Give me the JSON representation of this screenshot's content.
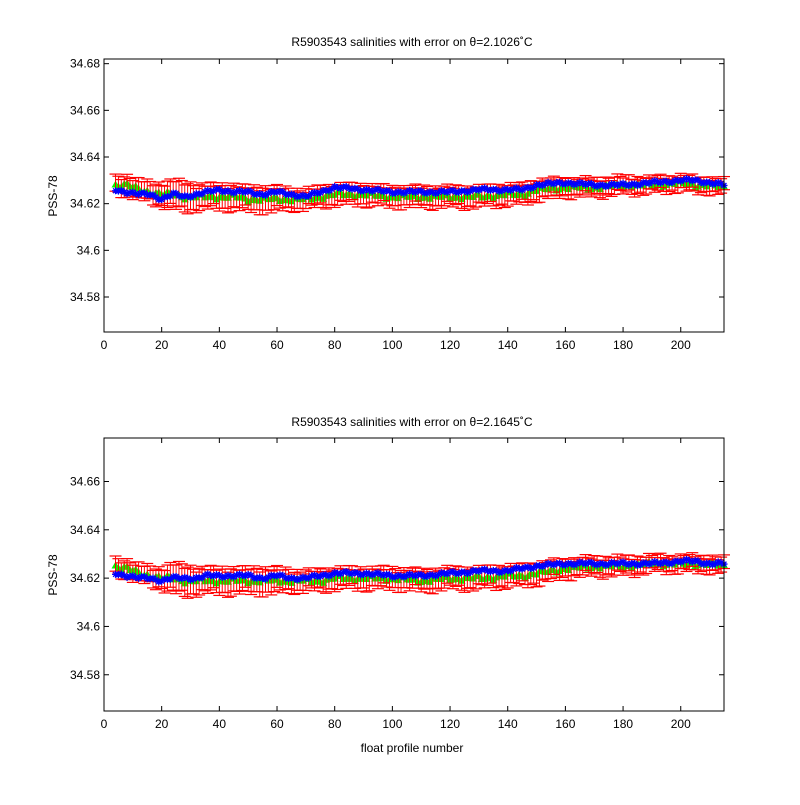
{
  "colors": {
    "background": "#ffffff",
    "axes": "#000000",
    "error_bars": "#ff0000",
    "mapped_salinity": "#00ff00",
    "float_salinity": "#0000ff"
  },
  "chart_data": [
    {
      "type": "scatter",
      "title": "R5903543 salinities with error on θ=2.1026˚C",
      "xlabel": "",
      "ylabel": "PSS-78",
      "xlim": [
        0,
        215
      ],
      "ylim": [
        34.565,
        34.682
      ],
      "xticks": [
        0,
        20,
        40,
        60,
        80,
        100,
        120,
        140,
        160,
        180,
        200
      ],
      "xtick_labels": [
        "0",
        "20",
        "40",
        "60",
        "80",
        "100",
        "120",
        "140",
        "160",
        "180",
        "200"
      ],
      "yticks": [
        34.58,
        34.6,
        34.62,
        34.64,
        34.66,
        34.68
      ],
      "ytick_labels": [
        "34.58",
        "34.6",
        "34.62",
        "34.64",
        "34.66",
        "34.68"
      ],
      "grid": false,
      "x_range_profiles": [
        4,
        215
      ],
      "anchors_x": [
        4,
        8,
        12,
        16,
        20,
        24,
        28,
        32,
        36,
        40,
        45,
        50,
        55,
        60,
        65,
        70,
        75,
        80,
        90,
        100,
        110,
        120,
        130,
        140,
        145,
        150,
        160,
        170,
        180,
        190,
        200,
        205,
        210,
        215
      ],
      "series": [
        {
          "marker": "asterisk",
          "anchor_values": [
            34.626,
            34.625,
            34.624,
            34.624,
            34.622,
            34.624,
            34.623,
            34.624,
            34.625,
            34.626,
            34.625,
            34.625,
            34.624,
            34.625,
            34.624,
            34.623,
            34.625,
            34.627,
            34.626,
            34.625,
            34.625,
            34.625,
            34.626,
            34.626,
            34.626,
            34.628,
            34.629,
            34.628,
            34.628,
            34.629,
            34.63,
            34.63,
            34.629,
            34.628
          ]
        },
        {
          "marker": "filled-triangle",
          "anchor_values": [
            34.628,
            34.628,
            34.626,
            34.625,
            34.624,
            34.624,
            34.623,
            34.623,
            34.623,
            34.623,
            34.623,
            34.622,
            34.622,
            34.622,
            34.622,
            34.622,
            34.623,
            34.624,
            34.624,
            34.623,
            34.623,
            34.623,
            34.623,
            34.624,
            34.624,
            34.626,
            34.627,
            34.627,
            34.628,
            34.628,
            34.629,
            34.628,
            34.628,
            34.627
          ]
        }
      ],
      "error_bar_halfwidth_anchor": [
        0.0035,
        0.004,
        0.004,
        0.004,
        0.0045,
        0.006,
        0.006,
        0.005,
        0.005,
        0.005,
        0.005,
        0.005,
        0.005,
        0.005,
        0.004,
        0.004,
        0.004,
        0.004,
        0.004,
        0.004,
        0.004,
        0.004,
        0.004,
        0.004,
        0.004,
        0.004,
        0.0035,
        0.0035,
        0.0035,
        0.003,
        0.003,
        0.003,
        0.003,
        0.003
      ]
    },
    {
      "type": "scatter",
      "title": "R5903543 salinities with error on θ=2.1645˚C",
      "xlabel": "float profile number",
      "ylabel": "PSS-78",
      "xlim": [
        0,
        215
      ],
      "ylim": [
        34.565,
        34.678
      ],
      "xticks": [
        0,
        20,
        40,
        60,
        80,
        100,
        120,
        140,
        160,
        180,
        200
      ],
      "xtick_labels": [
        "0",
        "20",
        "40",
        "60",
        "80",
        "100",
        "120",
        "140",
        "160",
        "180",
        "200"
      ],
      "yticks": [
        34.58,
        34.6,
        34.62,
        34.64,
        34.66
      ],
      "ytick_labels": [
        "34.58",
        "34.6",
        "34.62",
        "34.64",
        "34.66"
      ],
      "grid": false,
      "x_range_profiles": [
        4,
        215
      ],
      "anchors_x": [
        4,
        8,
        12,
        16,
        20,
        24,
        28,
        32,
        36,
        40,
        45,
        50,
        55,
        60,
        65,
        70,
        75,
        80,
        90,
        100,
        110,
        120,
        130,
        140,
        145,
        150,
        160,
        170,
        180,
        190,
        200,
        205,
        210,
        215
      ],
      "series": [
        {
          "marker": "asterisk",
          "anchor_values": [
            34.622,
            34.621,
            34.62,
            34.62,
            34.619,
            34.62,
            34.62,
            34.62,
            34.621,
            34.621,
            34.621,
            34.621,
            34.62,
            34.621,
            34.62,
            34.62,
            34.621,
            34.622,
            34.622,
            34.621,
            34.621,
            34.622,
            34.623,
            34.623,
            34.624,
            34.625,
            34.626,
            34.626,
            34.626,
            34.626,
            34.627,
            34.627,
            34.626,
            34.626
          ]
        },
        {
          "marker": "filled-triangle",
          "anchor_values": [
            34.625,
            34.624,
            34.622,
            34.621,
            34.62,
            34.62,
            34.619,
            34.619,
            34.619,
            34.619,
            34.619,
            34.619,
            34.619,
            34.619,
            34.619,
            34.619,
            34.619,
            34.62,
            34.62,
            34.62,
            34.619,
            34.62,
            34.62,
            34.621,
            34.621,
            34.622,
            34.624,
            34.625,
            34.625,
            34.626,
            34.626,
            34.626,
            34.626,
            34.625
          ]
        }
      ],
      "error_bar_halfwidth_anchor": [
        0.003,
        0.0035,
        0.0035,
        0.0035,
        0.004,
        0.006,
        0.006,
        0.005,
        0.005,
        0.005,
        0.005,
        0.005,
        0.005,
        0.005,
        0.004,
        0.004,
        0.004,
        0.004,
        0.004,
        0.004,
        0.004,
        0.004,
        0.004,
        0.004,
        0.004,
        0.004,
        0.0035,
        0.0035,
        0.0035,
        0.003,
        0.003,
        0.003,
        0.003,
        0.003
      ]
    }
  ]
}
